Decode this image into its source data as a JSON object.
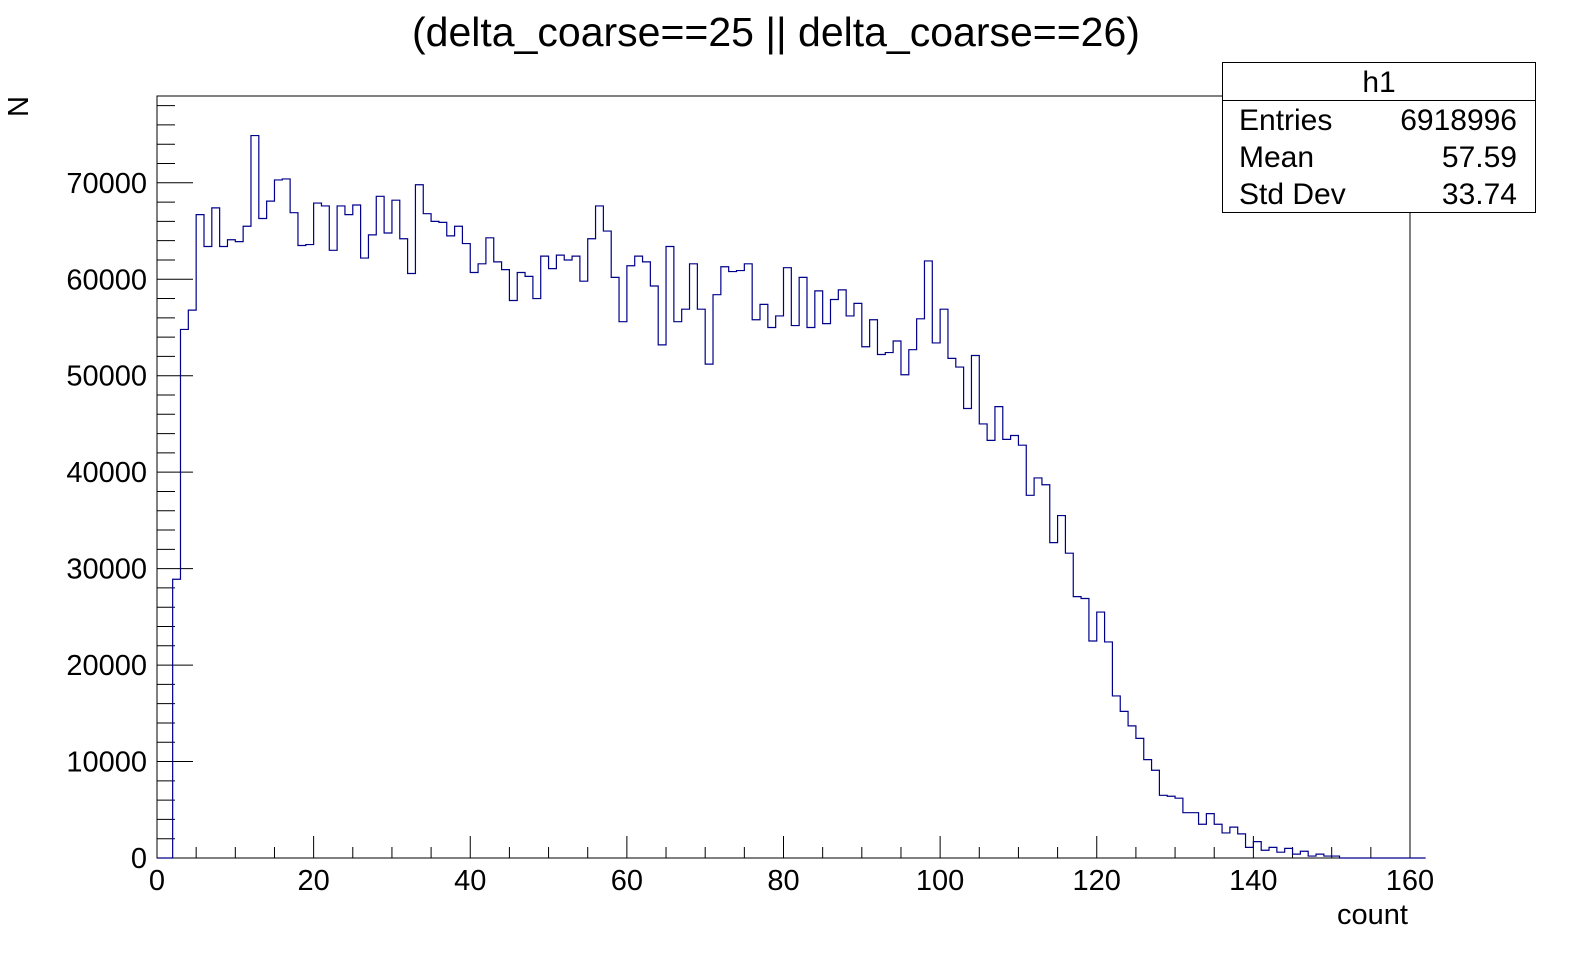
{
  "chart_data": {
    "type": "histogram",
    "title": "(delta_coarse==25 || delta_coarse==26)",
    "xlabel": "count",
    "ylabel": "N",
    "xlim": [
      0,
      160
    ],
    "ylim": [
      0,
      79000
    ],
    "xticks": [
      0,
      20,
      40,
      60,
      80,
      100,
      120,
      140,
      160
    ],
    "yticks": [
      0,
      10000,
      20000,
      30000,
      40000,
      50000,
      60000,
      70000
    ],
    "bin_width": 1,
    "x_start": 0,
    "values": [
      0,
      0,
      28900,
      54800,
      56800,
      66700,
      63400,
      67400,
      63400,
      64100,
      63900,
      65500,
      74900,
      66300,
      68100,
      70300,
      70400,
      66900,
      63500,
      63600,
      67900,
      67600,
      63000,
      67600,
      66700,
      67700,
      62200,
      64600,
      68600,
      64800,
      68200,
      64200,
      60600,
      69800,
      66800,
      66000,
      65900,
      64500,
      65500,
      63700,
      60700,
      61600,
      64300,
      61800,
      61000,
      57800,
      60700,
      60300,
      58000,
      62400,
      61100,
      62500,
      62000,
      62400,
      59800,
      64200,
      67600,
      65000,
      60200,
      55600,
      61400,
      62400,
      61800,
      59300,
      53200,
      63400,
      55600,
      56900,
      61600,
      56900,
      51200,
      58400,
      61300,
      60800,
      60900,
      61600,
      55800,
      57400,
      55000,
      56200,
      61200,
      55200,
      60200,
      55000,
      58800,
      55400,
      57900,
      58900,
      56200,
      57500,
      53000,
      55800,
      52200,
      52400,
      53600,
      50100,
      52700,
      55900,
      61900,
      53400,
      56900,
      51800,
      50900,
      46600,
      52100,
      45000,
      43300,
      46800,
      43400,
      43800,
      42800,
      37600,
      39400,
      38700,
      32700,
      35500,
      31600,
      27100,
      26900,
      22500,
      25500,
      22400,
      16800,
      15200,
      13700,
      12400,
      10200,
      9100,
      6500,
      6400,
      6200,
      4700,
      4700,
      3500,
      4600,
      3500,
      2600,
      3200,
      2500,
      1100,
      1700,
      800,
      1100,
      600,
      1000,
      400,
      700,
      200,
      400,
      200,
      200,
      0,
      0,
      0,
      0,
      0,
      0,
      0,
      0,
      0,
      0,
      0
    ],
    "stats": {
      "name": "h1",
      "rows": [
        {
          "label": "Entries",
          "value": "6918996"
        },
        {
          "label": "Mean",
          "value": "57.59"
        },
        {
          "label": "Std Dev",
          "value": "33.74"
        }
      ]
    },
    "colors": {
      "line": "#00008b",
      "axis": "#000000"
    }
  }
}
